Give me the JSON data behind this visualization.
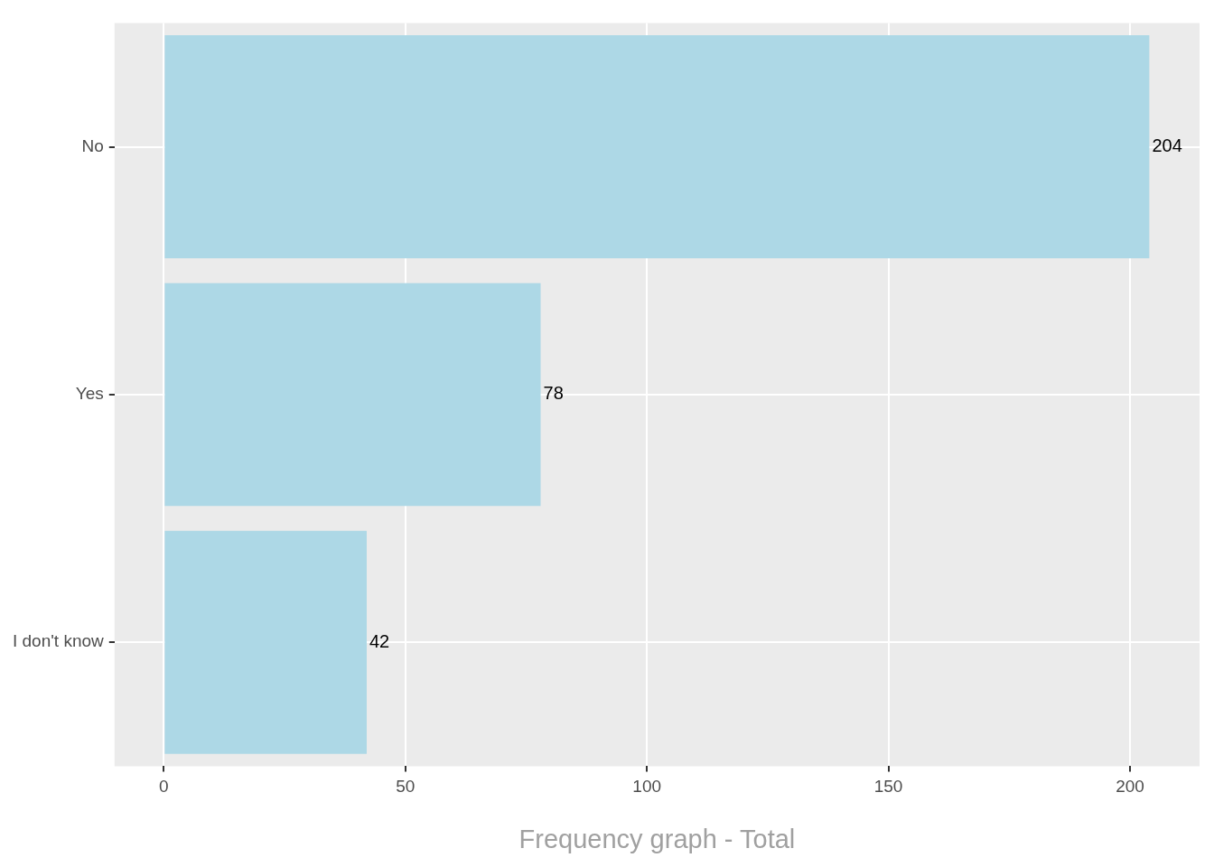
{
  "chart_data": {
    "type": "bar",
    "orientation": "horizontal",
    "xlabel": "Frequency graph - Total",
    "categories": [
      "No",
      "Yes",
      "I don't know"
    ],
    "values": [
      204,
      78,
      42
    ],
    "color": "#add8e6",
    "xlim": [
      -10.2,
      214.4
    ],
    "xticks": [
      0,
      50,
      100,
      150,
      200
    ],
    "grid": true,
    "data_labels": true,
    "legend": false
  }
}
